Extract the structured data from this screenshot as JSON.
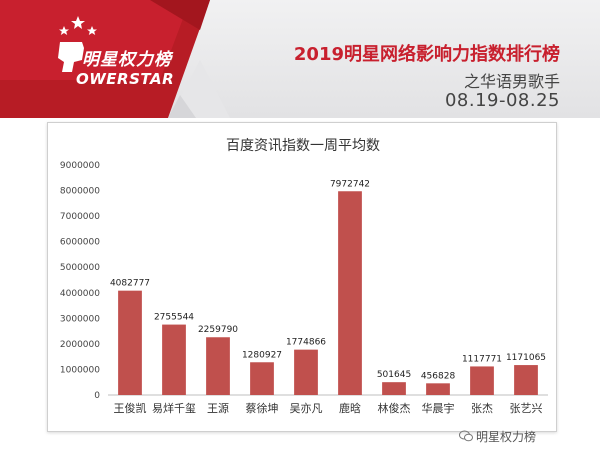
{
  "header": {
    "logo_cn": "明星权力榜",
    "logo_en": "OWERSTAR",
    "title": "2019明星网络影响力指数排行榜",
    "subtitle": "之华语男歌手",
    "dates": "08.19-08.25"
  },
  "watermark": {
    "text": "明星权力榜",
    "icon": "wechat-icon"
  },
  "colors": {
    "banner": "#e7e7e9",
    "accent": "#c8202e",
    "bar": "#c0504d"
  },
  "chart_data": {
    "type": "bar",
    "title": "百度资讯指数一周平均数",
    "categories": [
      "王俊凯",
      "易烊千玺",
      "王源",
      "蔡徐坤",
      "吴亦凡",
      "鹿晗",
      "林俊杰",
      "华晨宇",
      "张杰",
      "张艺兴"
    ],
    "values": [
      4082777,
      2755544,
      2259790,
      1280927,
      1774866,
      7972742,
      501645,
      456828,
      1117771,
      1171065
    ],
    "ylim": [
      0,
      9000000
    ],
    "yticks": [
      "0",
      "1000000",
      "2000000",
      "3000000",
      "4000000",
      "5000000",
      "6000000",
      "7000000",
      "8000000",
      "9000000"
    ],
    "grid": false,
    "legend": "none",
    "xlabel": "",
    "ylabel": ""
  }
}
